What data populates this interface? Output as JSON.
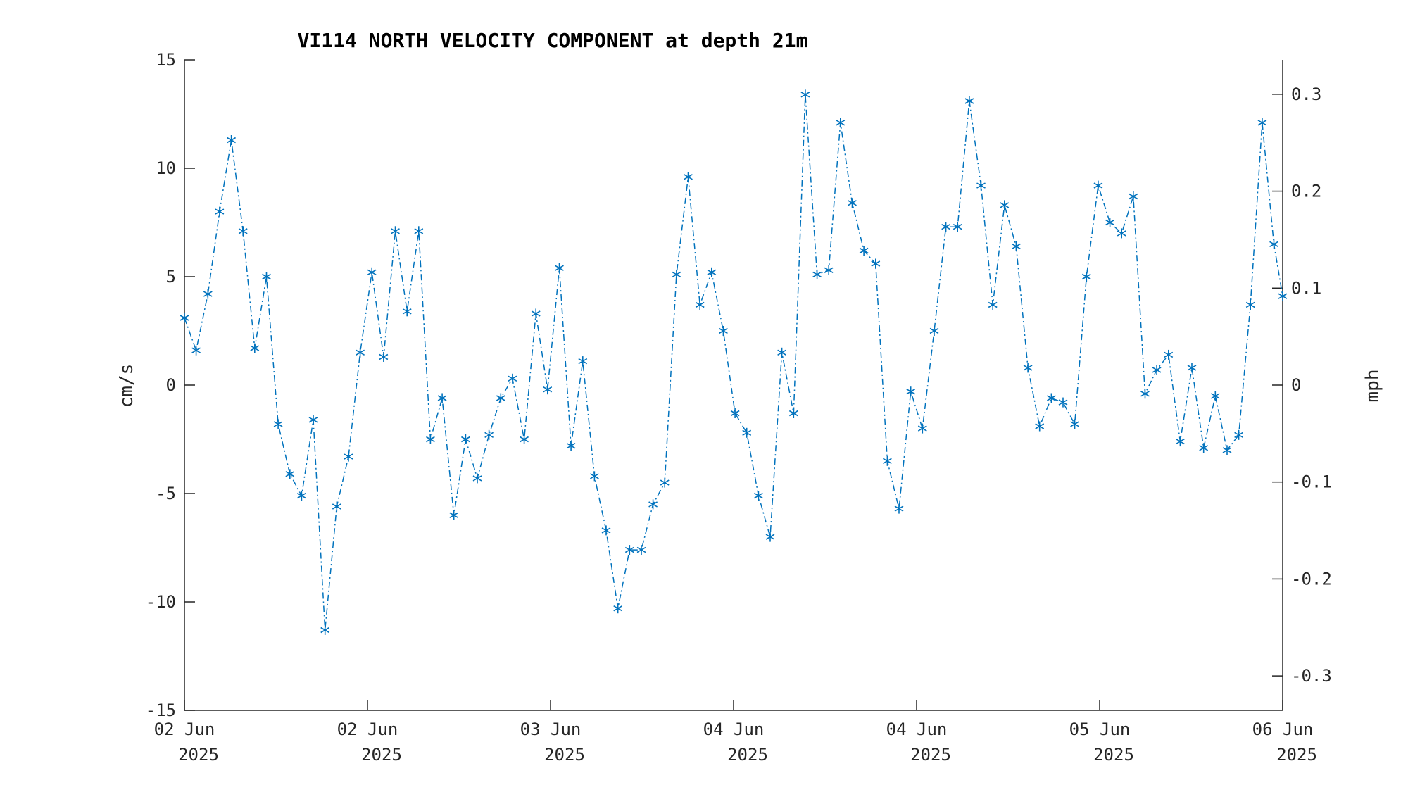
{
  "chart_data": {
    "type": "line",
    "title": "VI114 NORTH VELOCITY COMPONENT at depth 21m",
    "xlabel": "",
    "ylabel": "cm/s",
    "ylabel_right": "mph",
    "ylim": [
      -15,
      15
    ],
    "ylim_right": [
      -0.3355,
      0.3355
    ],
    "yticks": [
      -15,
      -10,
      -5,
      0,
      5,
      10,
      15
    ],
    "yticks_right": [
      -0.3,
      -0.2,
      -0.1,
      0,
      0.1,
      0.2,
      0.3
    ],
    "ytick_labels_right": [
      "-0.3",
      "-0.2",
      "-0.1",
      "0",
      "0.1",
      "0.2",
      "0.3"
    ],
    "xlim": [
      0,
      3.0
    ],
    "xticks": [
      0,
      0.5,
      1.0,
      1.5,
      2.0,
      2.5,
      3.0
    ],
    "xtick_labels": [
      {
        "line1": "02 Jun",
        "line2": "2025"
      },
      {
        "line1": "02 Jun",
        "line2": "2025"
      },
      {
        "line1": "03 Jun",
        "line2": "2025"
      },
      {
        "line1": "04 Jun",
        "line2": "2025"
      },
      {
        "line1": "04 Jun",
        "line2": "2025"
      },
      {
        "line1": "05 Jun",
        "line2": "2025"
      },
      {
        "line1": "06 Jun",
        "line2": "2025"
      }
    ],
    "grid": false,
    "line_color": "#0072BD",
    "line_style": "dash-dot",
    "marker": "asterisk",
    "series": [
      {
        "x": [
          0.0,
          0.032,
          0.064,
          0.096,
          0.128,
          0.16,
          0.192,
          0.224,
          0.256,
          0.288,
          0.32,
          0.352,
          0.384,
          0.416,
          0.448,
          0.48,
          0.512,
          0.544,
          0.576,
          0.608,
          0.64,
          0.672,
          0.704,
          0.736,
          0.768,
          0.8,
          0.832,
          0.864,
          0.896,
          0.928,
          0.96,
          0.992,
          1.024,
          1.056,
          1.088,
          1.12,
          1.152,
          1.184,
          1.216,
          1.248,
          1.28,
          1.312,
          1.344,
          1.376,
          1.408,
          1.44,
          1.472,
          1.504,
          1.536,
          1.568,
          1.6,
          1.632,
          1.664,
          1.696,
          1.728,
          1.76,
          1.792,
          1.824,
          1.856,
          1.888,
          1.92,
          1.952,
          1.984,
          2.016,
          2.048,
          2.08,
          2.112,
          2.144,
          2.176,
          2.208,
          2.24,
          2.272,
          2.304,
          2.336,
          2.368,
          2.4,
          2.432,
          2.464,
          2.496,
          2.528,
          2.56,
          2.592,
          2.624,
          2.656,
          2.688,
          2.72,
          2.752,
          2.784,
          2.816,
          2.848,
          2.88,
          2.912,
          2.944,
          2.976,
          3.0
        ],
        "values": [
          3.1,
          1.6,
          4.2,
          8.0,
          11.3,
          7.1,
          1.7,
          5.0,
          -1.8,
          -4.1,
          -5.1,
          -1.6,
          -11.3,
          -5.6,
          -3.3,
          1.5,
          5.2,
          1.3,
          7.1,
          3.4,
          7.1,
          -2.5,
          -0.6,
          -6.0,
          -2.5,
          -4.3,
          -2.3,
          -0.6,
          0.3,
          -2.5,
          3.3,
          -0.2,
          5.4,
          -2.8,
          1.1,
          -4.2,
          -6.7,
          -10.3,
          -7.6,
          -7.6,
          -5.5,
          -4.5,
          5.1,
          9.6,
          3.7,
          5.2,
          2.5,
          -1.3,
          -2.2,
          -5.1,
          -7.0,
          1.5,
          -1.3,
          13.4,
          5.1,
          5.3,
          12.1,
          8.4,
          6.2,
          5.6,
          -3.5,
          -5.7,
          -0.3,
          -2.0,
          2.5,
          7.3,
          7.3,
          13.1,
          9.2,
          3.7,
          8.3,
          6.4,
          0.8,
          -1.9,
          -0.6,
          -0.8,
          -1.8,
          5.0,
          9.2,
          7.5,
          7.0,
          8.7,
          -0.4,
          0.7,
          1.4,
          -2.6,
          0.8,
          -2.9,
          -0.5,
          -3.0,
          -2.3,
          3.7,
          12.1,
          6.5,
          4.1
        ]
      }
    ]
  }
}
